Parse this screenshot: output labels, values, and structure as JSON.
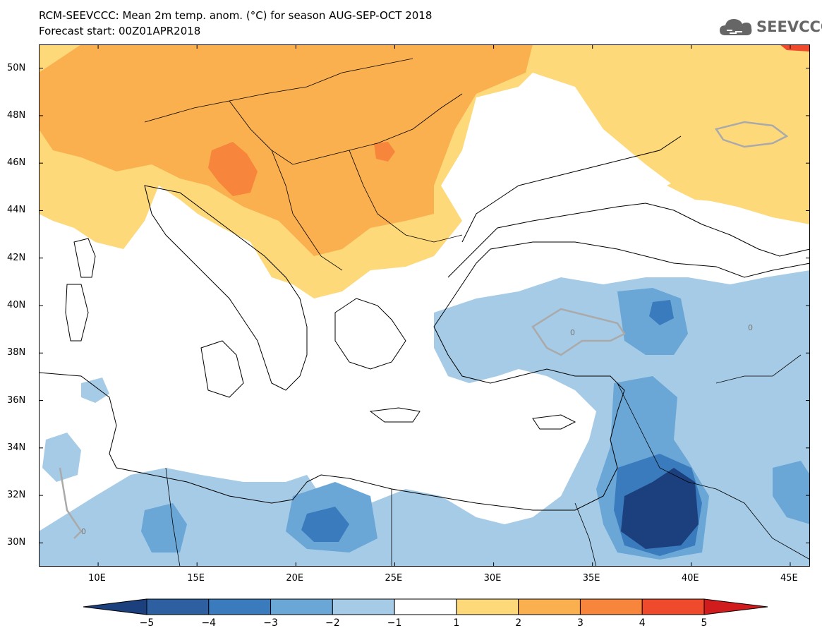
{
  "title_line1": "RCM-SEEVCCC: Mean 2m temp. anom. (°C) for season AUG-SEP-OCT 2018",
  "title_line2": "Forecast start: 00Z01APR2018",
  "logo_text": "SEEVCCC",
  "map": {
    "lon_range": [
      7,
      46
    ],
    "lat_range": [
      29,
      51
    ],
    "lat_ticks": [
      "50N",
      "48N",
      "46N",
      "44N",
      "42N",
      "40N",
      "38N",
      "36N",
      "34N",
      "32N",
      "30N"
    ],
    "lon_ticks": [
      "10E",
      "15E",
      "20E",
      "25E",
      "30E",
      "35E",
      "40E",
      "45E"
    ],
    "contour_label": "0",
    "colors": {
      "neg5_neg4": "#1c3f7d",
      "neg4_neg3": "#3a7bbd",
      "neg3_neg2": "#6aa6d6",
      "neg2_neg1": "#a6cbe6",
      "neg1_1": "#ffffff",
      "1_2": "#fdd97a",
      "2_3": "#fbb04f",
      "3_4": "#f7853b",
      "4_5": "#f04a2c",
      "gt5": "#d01c1c",
      "zero_contour": "#aaaaaa",
      "coast": "#000000"
    }
  },
  "colorbar": {
    "labels": [
      "-5",
      "-4",
      "-3",
      "-2",
      "-1",
      "1",
      "2",
      "3",
      "4",
      "5"
    ],
    "colors": [
      "#1c3f7d",
      "#2d5fa1",
      "#3a7bbd",
      "#6aa6d6",
      "#a6cbe6",
      "#ffffff",
      "#fdd97a",
      "#fbb04f",
      "#f7853b",
      "#f04a2c",
      "#d01c1c"
    ]
  }
}
